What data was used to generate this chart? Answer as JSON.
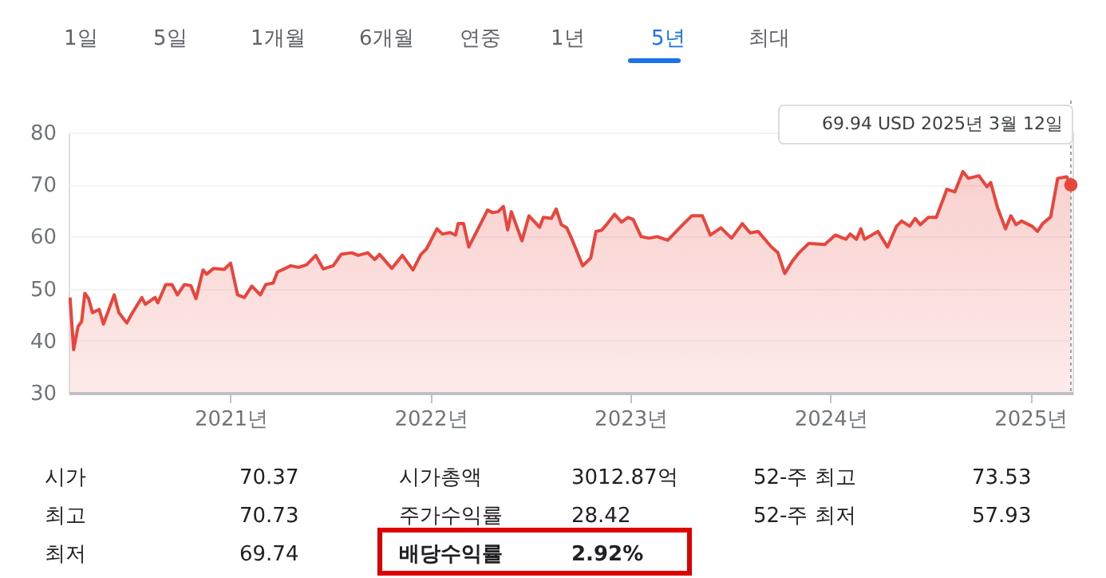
{
  "chart_data": {
    "type": "area",
    "color": "#e8453c",
    "x": [
      2020.197,
      2020.215,
      2020.237,
      2020.255,
      2020.271,
      2020.29,
      2020.309,
      2020.343,
      2020.364,
      2020.418,
      2020.441,
      2020.481,
      2020.503,
      2020.556,
      2020.574,
      2020.622,
      2020.636,
      2020.676,
      2020.707,
      2020.734,
      2020.769,
      2020.801,
      2020.827,
      2020.862,
      2020.88,
      2020.915,
      2020.968,
      2021.0,
      2021.035,
      2021.069,
      2021.106,
      2021.149,
      2021.176,
      2021.213,
      2021.234,
      2021.301,
      2021.34,
      2021.38,
      2021.426,
      2021.463,
      2021.513,
      2021.553,
      2021.606,
      2021.638,
      2021.686,
      2021.721,
      2021.745,
      2021.806,
      2021.859,
      2021.912,
      2021.952,
      2021.979,
      2022.032,
      2022.059,
      2022.098,
      2022.125,
      2022.138,
      2022.165,
      2022.191,
      2022.285,
      2022.311,
      2022.338,
      2022.364,
      2022.386,
      2022.404,
      2022.457,
      2022.492,
      2022.545,
      2022.564,
      2022.604,
      2022.628,
      2022.654,
      2022.681,
      2022.707,
      2022.761,
      2022.801,
      2022.827,
      2022.854,
      2022.88,
      2022.92,
      2022.955,
      2022.987,
      2023.013,
      2023.053,
      2023.093,
      2023.133,
      2023.186,
      2023.266,
      2023.306,
      2023.359,
      2023.399,
      2023.452,
      2023.505,
      2023.559,
      2023.598,
      2023.638,
      2023.705,
      2023.737,
      2023.771,
      2023.811,
      2023.838,
      2023.891,
      2023.971,
      2024.024,
      2024.077,
      2024.098,
      2024.13,
      2024.152,
      2024.17,
      2024.237,
      2024.285,
      2024.33,
      2024.356,
      2024.396,
      2024.423,
      2024.449,
      2024.489,
      2024.529,
      2024.582,
      2024.622,
      2024.662,
      2024.689,
      2024.742,
      2024.782,
      2024.801,
      2024.835,
      2024.875,
      2024.902,
      2024.928,
      2024.955,
      2025.008,
      2025.035,
      2025.061,
      2025.101,
      2025.136,
      2025.181,
      2025.202
    ],
    "values": [
      48.3,
      38.3,
      42.7,
      43.7,
      49.1,
      48.1,
      45.4,
      46.0,
      43.2,
      48.8,
      45.4,
      43.4,
      45.0,
      48.3,
      47.0,
      48.3,
      47.3,
      50.8,
      50.8,
      48.8,
      50.8,
      50.6,
      48.1,
      53.6,
      52.8,
      53.9,
      53.7,
      54.9,
      48.8,
      48.3,
      50.5,
      48.8,
      50.8,
      51.1,
      53.2,
      54.4,
      54.1,
      54.6,
      56.4,
      53.8,
      54.4,
      56.6,
      56.9,
      56.4,
      56.9,
      55.6,
      56.6,
      53.9,
      56.4,
      53.6,
      56.6,
      57.6,
      61.5,
      60.5,
      60.8,
      60.3,
      62.5,
      62.5,
      58.0,
      65.1,
      64.6,
      64.8,
      65.8,
      61.3,
      64.8,
      59.2,
      64.0,
      61.8,
      63.7,
      63.5,
      65.3,
      62.3,
      61.7,
      59.5,
      54.4,
      55.9,
      61.0,
      61.2,
      62.3,
      64.3,
      62.8,
      63.7,
      63.3,
      60.0,
      59.7,
      60.0,
      59.3,
      62.5,
      64.0,
      64.0,
      60.3,
      61.7,
      59.7,
      62.5,
      60.7,
      61.0,
      58.0,
      56.9,
      52.9,
      55.4,
      56.7,
      58.7,
      58.5,
      60.3,
      59.5,
      60.5,
      59.5,
      61.5,
      59.5,
      61.0,
      58.0,
      62.0,
      63.0,
      62.0,
      63.5,
      62.3,
      63.7,
      63.7,
      69.1,
      68.6,
      72.5,
      71.2,
      71.7,
      69.6,
      70.4,
      65.6,
      61.5,
      64.0,
      62.3,
      63.0,
      62.0,
      61.0,
      62.5,
      63.8,
      71.2,
      71.5,
      69.94
    ],
    "xlim": [
      2020.19,
      2025.21
    ],
    "ylim": [
      30,
      80
    ],
    "yticks": [
      30,
      40,
      50,
      60,
      70,
      80
    ],
    "xticks": [
      {
        "value": 2021,
        "label": "2021년"
      },
      {
        "value": 2022,
        "label": "2022년"
      },
      {
        "value": 2023,
        "label": "2023년"
      },
      {
        "value": 2024,
        "label": "2024년"
      },
      {
        "value": 2025,
        "label": "2025년"
      }
    ],
    "grid": "y",
    "ref_lines": [
      {
        "axis": "x",
        "value": 2025.202,
        "line_style": "dotted",
        "color": "#9aa0a6"
      }
    ],
    "annotations": [
      "1일",
      "5일",
      "1개월",
      "6개월",
      "연중",
      "1년",
      "5년",
      "최대",
      "69.94 USD  2025년 3월 12일",
      "시가",
      "70.37",
      "시가총액",
      "3012.87억",
      "52-주 최고",
      "73.53",
      "최고",
      "70.73",
      "주가수익률",
      "28.42",
      "52-주 최저",
      "57.93",
      "최저",
      "69.74",
      "배당수익률",
      "2.92%"
    ]
  }
}
